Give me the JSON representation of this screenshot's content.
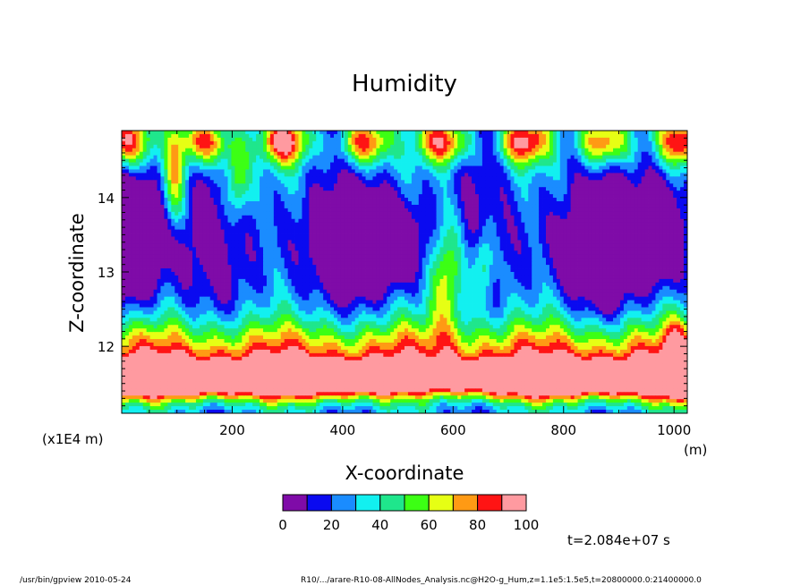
{
  "chart_data": {
    "type": "heatmap",
    "title": "Humidity",
    "xlabel": "X-coordinate",
    "ylabel": "Z-coordinate",
    "x_unit": "(m)",
    "y_scale_note": "(x1E4 m)",
    "xlim": [
      0,
      1024
    ],
    "ylim": [
      11.1,
      14.9
    ],
    "x_ticks": [
      "200",
      "400",
      "600",
      "800",
      "1000"
    ],
    "x_tick_values": [
      200,
      400,
      600,
      800,
      1000
    ],
    "y_ticks": [
      "12",
      "13",
      "14"
    ],
    "y_tick_values": [
      12,
      13,
      14
    ],
    "colorbar": {
      "levels": [
        0,
        10,
        20,
        30,
        40,
        50,
        60,
        70,
        80,
        90,
        100
      ],
      "labels": [
        "0",
        "20",
        "40",
        "60",
        "80",
        "100"
      ],
      "label_values": [
        0,
        20,
        40,
        60,
        80,
        100
      ],
      "colors": [
        "#7f0ba8",
        "#0a0af0",
        "#1a8cff",
        "#12f0f0",
        "#1fe68c",
        "#3cff14",
        "#e6ff14",
        "#ff9a14",
        "#ff1414",
        "#ff9aa0"
      ]
    },
    "time_label": "t=2.084e+07 s"
  },
  "footer": {
    "left": "/usr/bin/gpview   2010-05-24",
    "right": "R10/.../arare-R10-08-AllNodes_Analysis.nc@H2O-g_Hum,z=1.1e5:1.5e5,t=20800000.0:21400000.0"
  }
}
